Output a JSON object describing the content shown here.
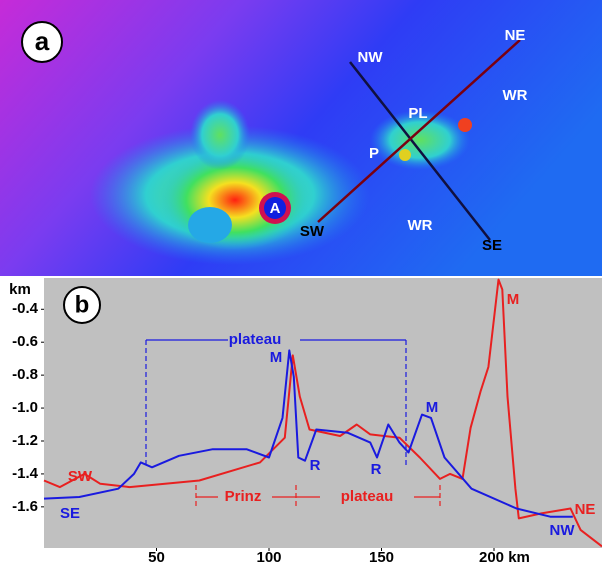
{
  "map_panel": {
    "panel_label": "a",
    "labels": [
      "NW",
      "NE",
      "SW",
      "SE",
      "PL",
      "P",
      "WR",
      "WR",
      "A"
    ]
  },
  "chart_data": {
    "type": "line",
    "panel_label": "b",
    "y_unit_label": "km",
    "xlim": [
      0,
      248
    ],
    "ylim": [
      -1.85,
      -0.21
    ],
    "xticks": [
      50,
      100,
      150,
      {
        "value": 200,
        "label": "200 km"
      }
    ],
    "yticks": [
      -0.4,
      -0.6,
      -0.8,
      {
        "value": -1,
        "label": "-1.0"
      },
      -1.2,
      -1.4,
      -1.6
    ],
    "series": [
      {
        "color": "#e82020",
        "x": [
          0,
          7,
          18,
          25,
          38,
          69,
          96,
          107,
          110.6,
          113.7,
          118,
          131.6,
          139,
          145,
          158,
          167,
          176,
          180.5,
          186,
          189.6,
          194,
          197.5,
          202,
          203.7,
          206,
          209.5,
          211,
          221,
          234,
          238.5,
          248
        ],
        "values": [
          -1.44,
          -1.48,
          -1.4,
          -1.46,
          -1.48,
          -1.44,
          -1.33,
          -1.18,
          -0.68,
          -0.93,
          -1.13,
          -1.17,
          -1.1,
          -1.16,
          -1.18,
          -1.3,
          -1.43,
          -1.4,
          -1.43,
          -1.12,
          -0.9,
          -0.75,
          -0.22,
          -0.28,
          -0.93,
          -1.49,
          -1.67,
          -1.64,
          -1.61,
          -1.74,
          -1.84
        ]
      },
      {
        "color": "#1a1adf",
        "x": [
          0,
          15.7,
          33,
          40,
          43,
          48,
          60,
          75,
          90,
          100,
          106,
          109,
          111,
          113,
          116,
          121,
          135,
          145,
          148,
          153,
          158,
          162,
          168,
          172,
          178,
          190,
          210,
          225,
          235
        ],
        "values": [
          -1.55,
          -1.54,
          -1.49,
          -1.4,
          -1.33,
          -1.36,
          -1.29,
          -1.25,
          -1.25,
          -1.3,
          -1.06,
          -0.65,
          -0.81,
          -1.3,
          -1.32,
          -1.13,
          -1.15,
          -1.21,
          -1.3,
          -1.1,
          -1.21,
          -1.27,
          -1.04,
          -1.06,
          -1.3,
          -1.49,
          -1.61,
          -1.66,
          -1.66
        ]
      }
    ],
    "annotations": [
      {
        "text": "plateau",
        "color": "#1a1adf"
      },
      {
        "text": "M",
        "color": "#1a1adf"
      },
      {
        "text": "R",
        "color": "#1a1adf"
      },
      {
        "text": "R",
        "color": "#1a1adf"
      },
      {
        "text": "M",
        "color": "#1a1adf"
      },
      {
        "text": "M",
        "color": "#e82020"
      },
      {
        "text": "SW",
        "color": "#e82020"
      },
      {
        "text": "SE",
        "color": "#1a1adf"
      },
      {
        "text": "NE",
        "color": "#e82020"
      },
      {
        "text": "NW",
        "color": "#1a1adf"
      },
      {
        "text": "Prinz",
        "color": "#e82020"
      },
      {
        "text": "plateau",
        "color": "#e82020"
      }
    ]
  }
}
